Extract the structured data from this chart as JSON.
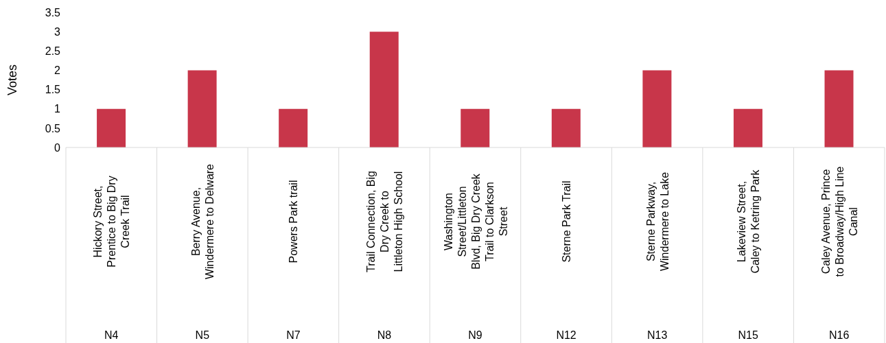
{
  "chart_data": {
    "type": "bar",
    "ylabel": "Votes",
    "categories": [
      "Hickory Street, Prentice to Big Dry Creek Trail",
      "Berry Avenue, Windermere to Delware",
      "Powers Park trail",
      "Trail Connection, Big Dry Creek to Littleton High School",
      "Washington Street/Littleton Blvd, Big Dry Creek Trail to Clarkson Street",
      "Sterne Park Trail",
      "Sterne Parkway, Windermere to Lake",
      "Lakeview Street, Caley to Ketring Park",
      "Caley Avenue, Prince to Broadway/High Line Canal"
    ],
    "values": [
      1,
      2,
      1,
      3,
      1,
      1,
      2,
      1,
      2
    ],
    "color": "#c8364a",
    "ylim": [
      0,
      3.5
    ],
    "yticks": [
      0,
      0.5,
      1,
      1.5,
      2,
      2.5,
      3,
      3.5
    ],
    "grid": false,
    "annotations": [
      "N4",
      "N5",
      "N7",
      "N8",
      "N9",
      "N12",
      "N13",
      "N15",
      "N16"
    ]
  }
}
